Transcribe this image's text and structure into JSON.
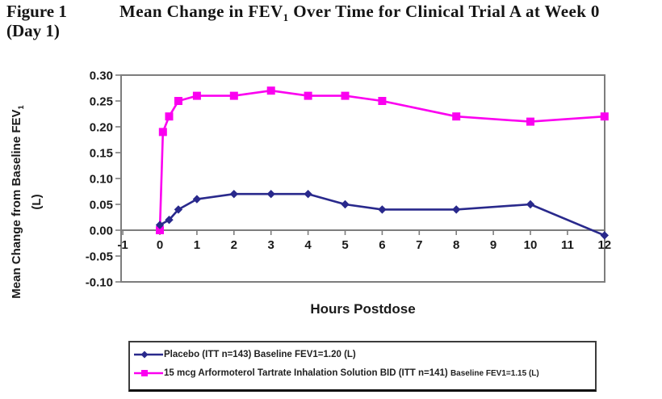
{
  "figure": {
    "label": "Figure 1",
    "sublabel": "(Day 1)",
    "title_pre": "Mean Change in FEV",
    "title_sub": "1",
    "title_post": " Over Time for Clinical Trial A at Week 0"
  },
  "chart_data": {
    "type": "line",
    "title": "Mean Change in FEV1 Over Time for Clinical Trial A at Week 0 (Day 1)",
    "xlabel": "Hours Postdose",
    "ylabel_pre": "Mean Change from Baseline FEV",
    "ylabel_sub": "1",
    "ylabel_line2": "(L)",
    "xlim": [
      -1,
      12
    ],
    "ylim": [
      -0.1,
      0.3
    ],
    "x_ticks": [
      -1,
      0,
      1,
      2,
      3,
      4,
      5,
      6,
      7,
      8,
      9,
      10,
      11,
      12
    ],
    "y_ticks": [
      "0.30",
      "0.25",
      "0.20",
      "0.15",
      "0.10",
      "0.05",
      "0.00",
      "-0.05",
      "-0.10"
    ],
    "grid": false,
    "legend_position": "bottom",
    "axis_color": "#7d7d7d",
    "series": [
      {
        "name": "Placebo",
        "marker": "diamond",
        "color": "#29298c",
        "legend": "Placebo (ITT n=143) Baseline FEV1=1.20 (L)",
        "legend_small": "",
        "x": [
          0,
          0.25,
          0.5,
          1,
          2,
          3,
          4,
          5,
          6,
          8,
          10,
          12
        ],
        "y": [
          0.01,
          0.02,
          0.04,
          0.06,
          0.07,
          0.07,
          0.07,
          0.05,
          0.04,
          0.04,
          0.05,
          -0.01
        ]
      },
      {
        "name": "15 mcg Arformoterol Tartrate Inhalation Solution BID",
        "marker": "square",
        "color": "#fb00f0",
        "legend": "15 mcg Arformoterol Tartrate Inhalation Solution BID (ITT n=141) ",
        "legend_small": "Baseline FEV1=1.15 (L)",
        "x": [
          0,
          0.083,
          0.25,
          0.5,
          1,
          2,
          3,
          4,
          5,
          6,
          8,
          10,
          12
        ],
        "y": [
          0.0,
          0.19,
          0.22,
          0.25,
          0.26,
          0.26,
          0.27,
          0.26,
          0.26,
          0.25,
          0.22,
          0.21,
          0.22
        ]
      }
    ]
  }
}
